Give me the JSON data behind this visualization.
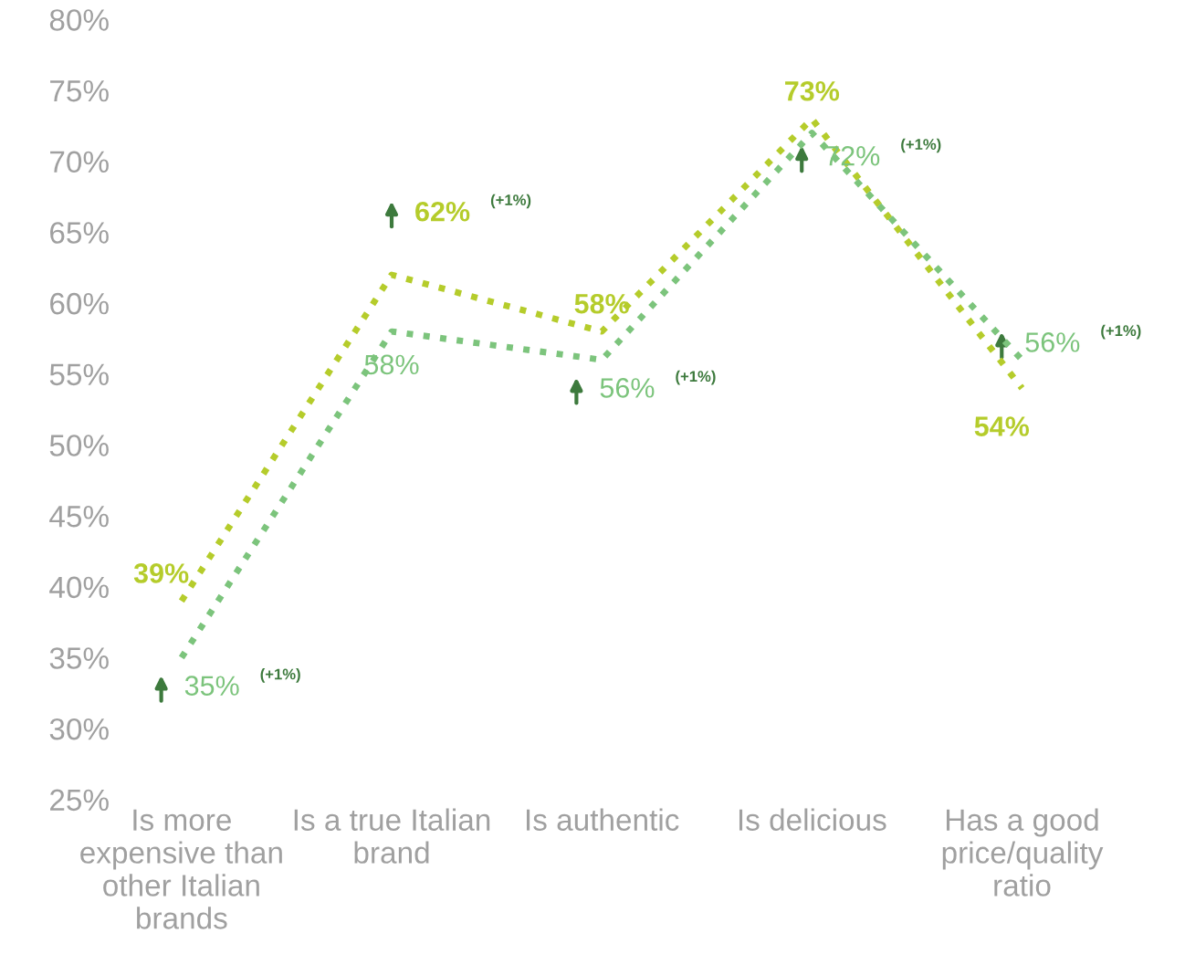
{
  "chart_data": {
    "type": "line",
    "categories": [
      "Is more\nexpensive than\nother Italian\nbrands",
      "Is a true Italian\nbrand",
      "Is authentic",
      "Is delicious",
      "Has a good\nprice/quality\nratio"
    ],
    "series": [
      {
        "color": "#b5cc2b",
        "values": [
          39,
          62,
          58,
          73,
          54
        ],
        "value_labels": [
          "39%",
          "62%",
          "58%",
          "73%",
          "54%"
        ]
      },
      {
        "color": "#7cc47c",
        "values": [
          35,
          58,
          56,
          72,
          56
        ],
        "value_labels": [
          "35%",
          "58%",
          "56%",
          "72%",
          "56%"
        ]
      }
    ],
    "annotations": [
      "(+1%)",
      "(+1%)",
      "(+1%)",
      "(+1%)",
      "(+1%)"
    ],
    "ylim": [
      25,
      80
    ],
    "yticks": [
      {
        "value": 25,
        "label": "25%"
      },
      {
        "value": 30,
        "label": "30%"
      },
      {
        "value": 35,
        "label": "35%"
      },
      {
        "value": 40,
        "label": "40%"
      },
      {
        "value": 45,
        "label": "45%"
      },
      {
        "value": 50,
        "label": "50%"
      },
      {
        "value": 55,
        "label": "55%"
      },
      {
        "value": 60,
        "label": "60%"
      },
      {
        "value": 65,
        "label": "65%"
      },
      {
        "value": 70,
        "label": "70%"
      },
      {
        "value": 75,
        "label": "75%"
      },
      {
        "value": 80,
        "label": "80%"
      }
    ],
    "grid": false,
    "legend": false,
    "marker": "none",
    "line_style": "dotted"
  }
}
